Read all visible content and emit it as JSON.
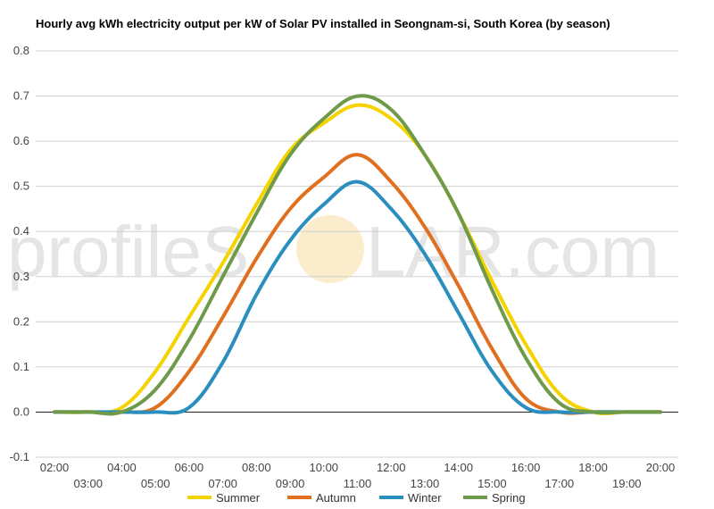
{
  "chart_data": {
    "type": "line",
    "title": "Hourly avg kWh electricity output per kW of Solar PV installed in Seongnam-si, South Korea (by season)",
    "xlabel": "",
    "ylabel": "",
    "categories": [
      "02:00",
      "03:00",
      "04:00",
      "05:00",
      "06:00",
      "07:00",
      "08:00",
      "09:00",
      "10:00",
      "11:00",
      "12:00",
      "13:00",
      "14:00",
      "15:00",
      "16:00",
      "17:00",
      "18:00",
      "19:00",
      "20:00"
    ],
    "ylim": [
      -0.1,
      0.8
    ],
    "yticks": [
      "0.8",
      "0.7",
      "0.6",
      "0.5",
      "0.4",
      "0.3",
      "0.2",
      "0.1",
      "0.0",
      "-0.1"
    ],
    "grid": true,
    "legend_position": "bottom",
    "series": [
      {
        "name": "Summer",
        "color": "#f5d300",
        "values": [
          0,
          0,
          0.01,
          0.09,
          0.21,
          0.33,
          0.46,
          0.58,
          0.64,
          0.68,
          0.65,
          0.57,
          0.44,
          0.29,
          0.15,
          0.04,
          0,
          0,
          0
        ]
      },
      {
        "name": "Autumn",
        "color": "#e07020",
        "values": [
          0,
          0,
          0,
          0.01,
          0.09,
          0.21,
          0.34,
          0.45,
          0.52,
          0.57,
          0.51,
          0.41,
          0.28,
          0.14,
          0.03,
          0,
          0,
          0,
          0
        ]
      },
      {
        "name": "Winter",
        "color": "#2a8ebe",
        "values": [
          0,
          0,
          0,
          0,
          0.01,
          0.11,
          0.26,
          0.38,
          0.46,
          0.51,
          0.45,
          0.35,
          0.22,
          0.09,
          0.01,
          0,
          0,
          0,
          0
        ]
      },
      {
        "name": "Spring",
        "color": "#6f9a4a",
        "values": [
          0,
          0,
          0,
          0.05,
          0.16,
          0.3,
          0.44,
          0.57,
          0.65,
          0.7,
          0.67,
          0.57,
          0.44,
          0.27,
          0.12,
          0.02,
          0,
          0,
          0
        ]
      }
    ]
  },
  "watermark": {
    "left": "profileS",
    "right": "LAR.com",
    "sun_color": "#f7dfa0"
  },
  "colors": {
    "grid": "#d0d0d0",
    "zero_line": "#222222"
  }
}
